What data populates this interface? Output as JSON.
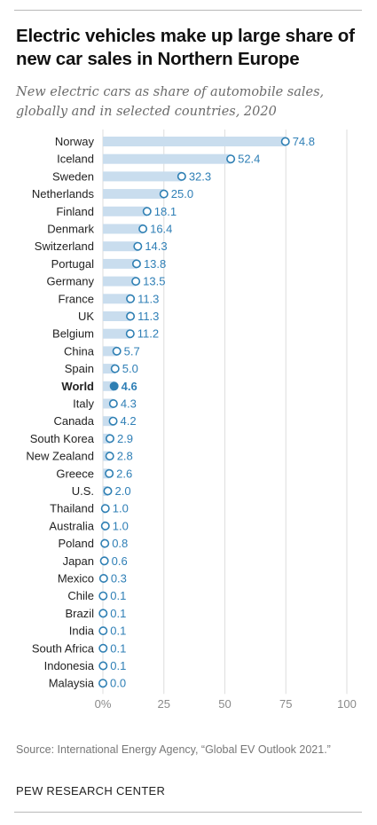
{
  "header": {
    "title": "Electric vehicles make up large share of new car sales in Northern Europe",
    "subtitle": "New electric cars as share of automobile sales, globally and in selected countries, 2020"
  },
  "footer": {
    "source": "Source: International Energy Agency, “Global EV Outlook 2021.”",
    "brand": "PEW RESEARCH CENTER"
  },
  "colors": {
    "bar": "#c9ddee",
    "marker_stroke": "#2e7fb3",
    "label": "#2f7fb6",
    "grid": "#dedede"
  },
  "chart_data": {
    "type": "bar",
    "orientation": "horizontal",
    "categories": [
      "Norway",
      "Iceland",
      "Sweden",
      "Netherlands",
      "Finland",
      "Denmark",
      "Switzerland",
      "Portugal",
      "Germany",
      "France",
      "UK",
      "Belgium",
      "China",
      "Spain",
      "World",
      "Italy",
      "Canada",
      "South Korea",
      "New Zealand",
      "Greece",
      "U.S.",
      "Thailand",
      "Australia",
      "Poland",
      "Japan",
      "Mexico",
      "Chile",
      "Brazil",
      "India",
      "South Africa",
      "Indonesia",
      "Malaysia"
    ],
    "values": [
      74.8,
      52.4,
      32.3,
      25.0,
      18.1,
      16.4,
      14.3,
      13.8,
      13.5,
      11.3,
      11.3,
      11.2,
      5.7,
      5.0,
      4.6,
      4.3,
      4.2,
      2.9,
      2.8,
      2.6,
      2.0,
      1.0,
      1.0,
      0.8,
      0.6,
      0.3,
      0.1,
      0.1,
      0.1,
      0.1,
      0.1,
      0.0
    ],
    "value_labels": [
      "74.8",
      "52.4",
      "32.3",
      "25.0",
      "18.1",
      "16.4",
      "14.3",
      "13.8",
      "13.5",
      "11.3",
      "11.3",
      "11.2",
      "5.7",
      "5.0",
      "4.6",
      "4.3",
      "4.2",
      "2.9",
      "2.8",
      "2.6",
      "2.0",
      "1.0",
      "1.0",
      "0.8",
      "0.6",
      "0.3",
      "0.1",
      "0.1",
      "0.1",
      "0.1",
      "0.1",
      "0.0"
    ],
    "highlight": "World",
    "xlim": [
      0,
      100
    ],
    "xticks": [
      0,
      25,
      50,
      75,
      100
    ],
    "xtick_labels": [
      "0%",
      "25",
      "50",
      "75",
      "100"
    ],
    "grid": true,
    "xlabel": "",
    "ylabel": ""
  }
}
